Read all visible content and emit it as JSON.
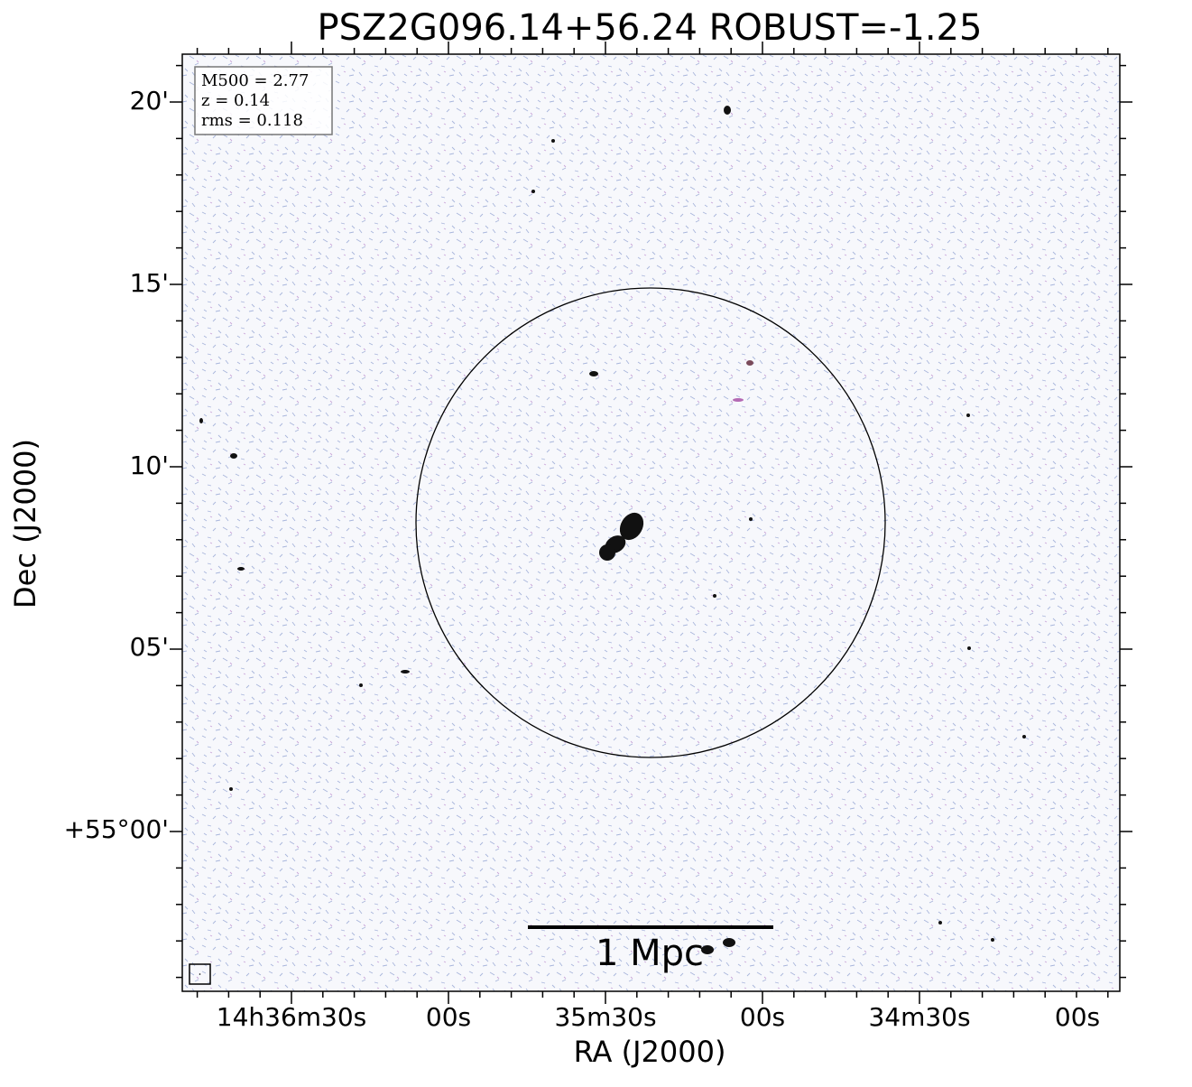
{
  "title": "PSZ2G096.14+56.24 ROBUST=-1.25",
  "xlabel": "RA (J2000)",
  "ylabel": "Dec (J2000)",
  "xtick_labels": [
    "14h36m30s",
    "00s",
    "35m30s",
    "00s",
    "34m30s",
    "00s"
  ],
  "ytick_labels": [
    "20'",
    "15'",
    "10'",
    "05'",
    "+55°00'"
  ],
  "info": [
    "M500 = 2.77",
    "z = 0.14",
    "rms = 0.118"
  ],
  "scalebar": "1 Mpc"
}
